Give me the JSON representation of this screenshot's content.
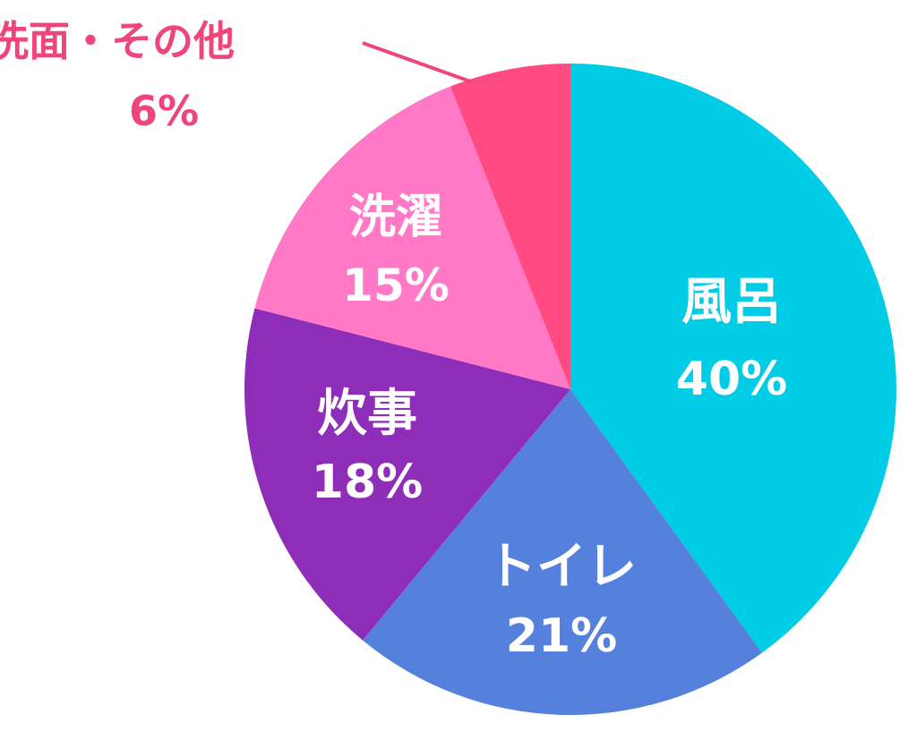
{
  "chart_data": {
    "type": "pie",
    "slices": [
      {
        "label": "風呂",
        "value": 40,
        "value_text": "40%",
        "color": "#00CCE5"
      },
      {
        "label": "トイレ",
        "value": 21,
        "value_text": "21%",
        "color": "#5581DD"
      },
      {
        "label": "炊事",
        "value": 18,
        "value_text": "18%",
        "color": "#8E2DB8"
      },
      {
        "label": "洗濯",
        "value": 15,
        "value_text": "15%",
        "color": "#FF79C6"
      },
      {
        "label": "洗面・その他",
        "value": 6,
        "value_text": "6%",
        "color": "#FF4B82",
        "label_outside": true
      }
    ],
    "start": "12 o'clock",
    "direction": "clockwise",
    "legend": "none"
  }
}
